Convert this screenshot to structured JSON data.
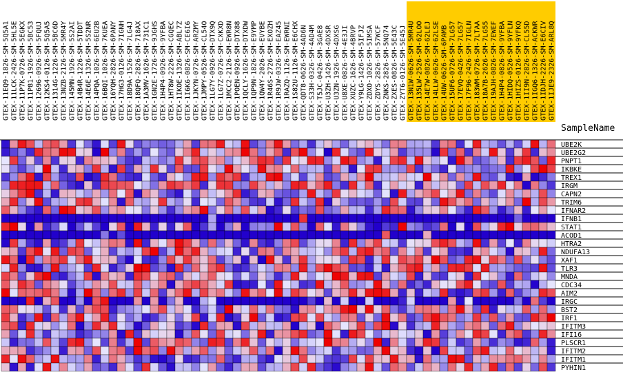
{
  "chart_data": {
    "type": "heatmap",
    "row_header": "SampleName",
    "columns": [
      {
        "name": "GTEX-11EQ9-1826-SM-5Q5A1",
        "highlight": false
      },
      {
        "name": "GTEX-11LCK-2426-SM-5HL5E",
        "highlight": false
      },
      {
        "name": "GTEX-11P7K-0726-SM-5EGKX",
        "highlight": false
      },
      {
        "name": "GTEX-11P81-1926-SM-5BC53",
        "highlight": false
      },
      {
        "name": "GTEX-12696-0926-SM-5FQUJ",
        "highlight": false
      },
      {
        "name": "GTEX-12KS4-0126-SM-5Q5A5",
        "highlight": false
      },
      {
        "name": "GTEX-1314G-1226-SM-5BC6D",
        "highlight": false
      },
      {
        "name": "GTEX-13NZB-2126-SM-5MR4Y",
        "highlight": false
      },
      {
        "name": "GTEX-145MN-1926-SM-5S2AI",
        "highlight": false
      },
      {
        "name": "GTEX-14B4R-1226-SM-5TDDT",
        "highlight": false
      },
      {
        "name": "GTEX-14E6E-1326-SM-5S2NR",
        "highlight": false
      },
      {
        "name": "GTEX-14PQA-1026-SM-6EU2B",
        "highlight": false
      },
      {
        "name": "GTEX-16BQI-1026-SM-7KUEA",
        "highlight": false
      },
      {
        "name": "GTEX-16YQH-2826-SM-6PANY",
        "highlight": false
      },
      {
        "name": "GTEX-17HG3-0126-SM-7IGNH",
        "highlight": false
      },
      {
        "name": "GTEX-18D9A-1526-SM-7LG4J",
        "highlight": false
      },
      {
        "name": "GTEX-18QFQ-2826-SM-718AX",
        "highlight": false
      },
      {
        "name": "GTEX-1A3MV-1626-SM-731C1",
        "highlight": false
      },
      {
        "name": "GTEX-1GN2E-1726-SM-9JGHS",
        "highlight": false
      },
      {
        "name": "GTEX-1H4P4-0926-SM-9YFBA",
        "highlight": false
      },
      {
        "name": "GTEX-1HT8W-2226-SM-CGQEC",
        "highlight": false
      },
      {
        "name": "GTEX-1IKOE-1326-SM-ABL7Z",
        "highlight": false
      },
      {
        "name": "GTEX-1I6K6-0826-SM-CE6I6",
        "highlight": false
      },
      {
        "name": "GTEX-1JKYN-0726-SM-ARZMY",
        "highlight": false
      },
      {
        "name": "GTEX-1JMPY-0526-SM-CL54O",
        "highlight": false
      },
      {
        "name": "GTEX-1LG7Y-0926-SM-DTX9Q",
        "highlight": false
      },
      {
        "name": "GTEX-1LG7Z-0726-SM-CXKXD",
        "highlight": false
      },
      {
        "name": "GTEX-1MCC2-2126-SM-EWR8N",
        "highlight": false
      },
      {
        "name": "GTEX-1POEN-0926-SM-DTX88",
        "highlight": false
      },
      {
        "name": "GTEX-1QCLY-1626-SM-DTXDW",
        "highlight": false
      },
      {
        "name": "GTEX-1QP9N-1826-SM-E9YMP",
        "highlight": false
      },
      {
        "name": "GTEX-1QW4Y-2026-SM-EVYBE",
        "highlight": false
      },
      {
        "name": "GTEX-1R46S-2726-SM-EXOZH",
        "highlight": false
      },
      {
        "name": "GTEX-1R9JW-0326-SM-EAZ45",
        "highlight": false
      },
      {
        "name": "GTEX-1RAZQ-1126-SM-EWRNI",
        "highlight": false
      },
      {
        "name": "GTEX-1S82U-1126-SM-E6CHX",
        "highlight": false
      },
      {
        "name": "GTEX-QDT8-0626-SM-4AD6N",
        "highlight": false
      },
      {
        "name": "GTEX-S33H-0326-SM-4AD4M",
        "highlight": false
      },
      {
        "name": "GTEX-T5JC-0426-SM-3GAE8",
        "highlight": false
      },
      {
        "name": "GTEX-U3ZH-1426-SM-4DXSR",
        "highlight": false
      },
      {
        "name": "GTEX-U3ZN-1926-SM-4DXSG",
        "highlight": false
      },
      {
        "name": "GTEX-U8XE-0826-SM-4E3JI",
        "highlight": false
      },
      {
        "name": "GTEX-XUZC-1626-SM-4BRVP",
        "highlight": false
      },
      {
        "name": "GTEX-Y9LG-1426-SM-5IFJZ",
        "highlight": false
      },
      {
        "name": "GTEX-ZDXO-1026-SM-5IMSA",
        "highlight": false
      },
      {
        "name": "GTEX-ZDYS-2826-SM-57WCF",
        "highlight": false
      },
      {
        "name": "GTEX-ZNKS-2826-SM-5NQ74",
        "highlight": false
      },
      {
        "name": "GTEX-ZXES-0826-SM-5E43C",
        "highlight": false
      },
      {
        "name": "GTEX-ZYT6-0126-SM-5E45J",
        "highlight": false
      },
      {
        "name": "GTEX-13N1W-0626-SM-5MR4U",
        "highlight": true
      },
      {
        "name": "GTEX-135LW-2526-SM-62LOO",
        "highlight": true
      },
      {
        "name": "GTEX-14E7W-0826-SM-62LEJ",
        "highlight": true
      },
      {
        "name": "GTEX-14LLW-0626-SM-62LSE",
        "highlight": true
      },
      {
        "name": "GTEX-14UW-0626-SM-6PAMB",
        "highlight": true
      },
      {
        "name": "GTEX-15UF6-0726-SM-7LG57",
        "highlight": true
      },
      {
        "name": "GTEX-17EVQ-0426-SM-7LG57",
        "highlight": true
      },
      {
        "name": "GTEX-17F96-2426-SM-7IGLN",
        "highlight": true
      },
      {
        "name": "GTEX-183WM-0726-SM-7LTAA",
        "highlight": true
      },
      {
        "name": "GTEX-18A7B-2626-SM-7LG55",
        "highlight": true
      },
      {
        "name": "GTEX-19AJH-0826-SM-7EWEF",
        "highlight": true
      },
      {
        "name": "GTEX-1H4P4-0826-SM-9YFBA",
        "highlight": true
      },
      {
        "name": "GTEX-1HIDQ-0526-SM-9YFLN",
        "highlight": true
      },
      {
        "name": "GTEX-1HIZS-0126-SM-9YFKQ",
        "highlight": true
      },
      {
        "name": "GTEX-1II9N-2826-SM-CL55D",
        "highlight": true
      },
      {
        "name": "GTEX-1IGQ6-1326-SM-ACKWR",
        "highlight": true
      },
      {
        "name": "GTEX-1IDJH-2226-SM-E6CIV",
        "highlight": true
      },
      {
        "name": "GTEX-1IJE9-2326-SM-ARL8Q",
        "highlight": true
      }
    ],
    "rows": [
      "UBE2K",
      "UBE2G2",
      "PNPT1",
      "IKBKE",
      "TREX1",
      "IRGM",
      "CAPN2",
      "TRIM6",
      "IFNAR2",
      "IFNB1",
      "STAT1",
      "ACOD1",
      "HTRA2",
      "NDUFA13",
      "XAF1",
      "TLR3",
      "MNDA",
      "CDC34",
      "AIM2",
      "IRGC",
      "BST2",
      "IRF1",
      "IFITM3",
      "IFI16",
      "PLSCR1",
      "IFITM2",
      "IFITM1",
      "PYHIN1"
    ],
    "value_range": [
      -3,
      3
    ],
    "colors": {
      "low": "#2200cc",
      "mid": "#e6e6ff",
      "high": "#ee0000",
      "dark_row": "#3300aa",
      "highlight_header": "#ffcc00",
      "grid": "#000000"
    }
  }
}
